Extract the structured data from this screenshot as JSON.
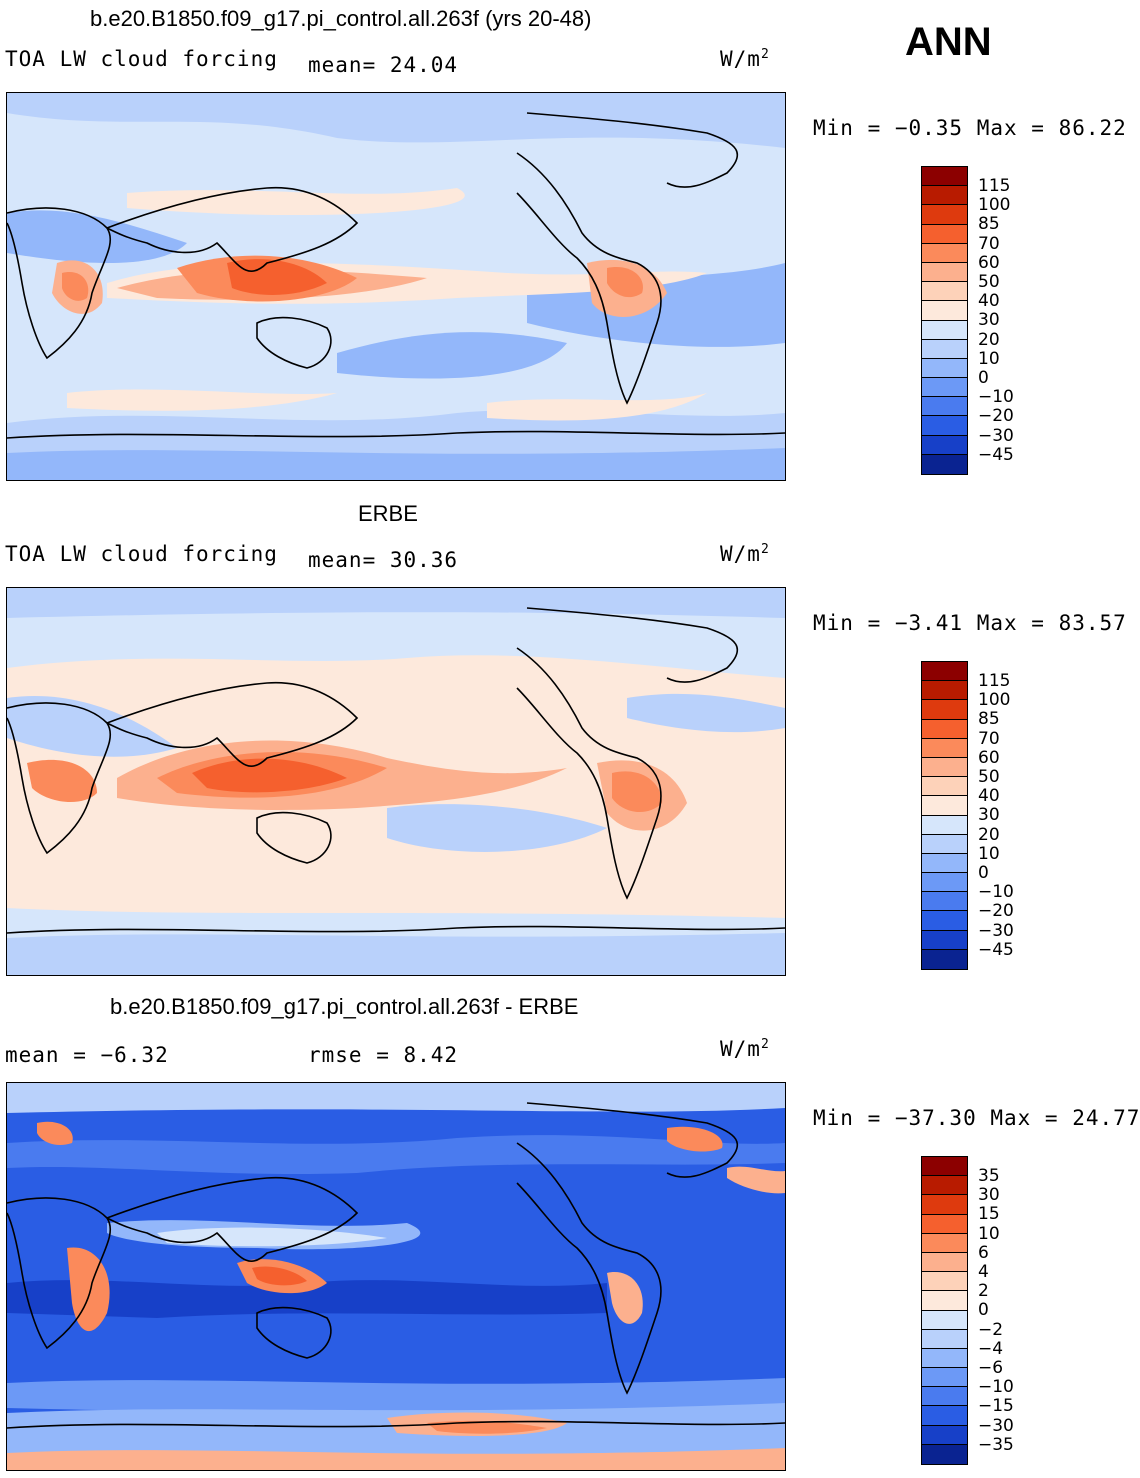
{
  "header": {
    "season": "ANN"
  },
  "panels": [
    {
      "title": "b.e20.B1850.f09_g17.pi_control.all.263f (yrs 20-48)",
      "variable": "TOA LW cloud forcing",
      "stat1": "mean=  24.04",
      "units": "W/m",
      "units_exp": "2",
      "minmax": "Min =  −0.35 Max =  86.22",
      "colorbar": {
        "labels": [
          "115",
          "100",
          "85",
          "70",
          "60",
          "50",
          "40",
          "30",
          "20",
          "10",
          "0",
          "−10",
          "−20",
          "−30",
          "−45"
        ],
        "colors": [
          "#8c0000",
          "#b81b00",
          "#de3a0e",
          "#f5602e",
          "#fb8a5b",
          "#fcb08e",
          "#fdd2b9",
          "#fde9dc",
          "#d6e6fb",
          "#b9d1fb",
          "#93b7fa",
          "#6c99f6",
          "#4a7bef",
          "#2a5de4",
          "#1740c8",
          "#0a2391"
        ]
      },
      "map_bg": "#d6e6fb"
    },
    {
      "title": "ERBE",
      "variable": "TOA LW cloud forcing",
      "stat1": "mean=  30.36",
      "units": "W/m",
      "units_exp": "2",
      "minmax": "Min =  −3.41 Max =  83.57",
      "colorbar": {
        "labels": [
          "115",
          "100",
          "85",
          "70",
          "60",
          "50",
          "40",
          "30",
          "20",
          "10",
          "0",
          "−10",
          "−20",
          "−30",
          "−45"
        ],
        "colors": [
          "#8c0000",
          "#b81b00",
          "#de3a0e",
          "#f5602e",
          "#fb8a5b",
          "#fcb08e",
          "#fdd2b9",
          "#fde9dc",
          "#d6e6fb",
          "#b9d1fb",
          "#93b7fa",
          "#6c99f6",
          "#4a7bef",
          "#2a5de4",
          "#1740c8",
          "#0a2391"
        ]
      },
      "map_bg": "#fde9dc"
    },
    {
      "title": "b.e20.B1850.f09_g17.pi_control.all.263f - ERBE",
      "variable": "",
      "stat1": "mean =  −6.32",
      "stat2": "rmse =   8.42",
      "units": "W/m",
      "units_exp": "2",
      "minmax": "Min = −37.30 Max =  24.77",
      "colorbar": {
        "labels": [
          "35",
          "30",
          "15",
          "10",
          "6",
          "4",
          "2",
          "0",
          "−2",
          "−4",
          "−6",
          "−10",
          "−15",
          "−30",
          "−35"
        ],
        "colors": [
          "#8c0000",
          "#b81b00",
          "#de3a0e",
          "#f5602e",
          "#fb8a5b",
          "#fcb08e",
          "#fdd2b9",
          "#fde9dc",
          "#d6e6fb",
          "#b9d1fb",
          "#93b7fa",
          "#6c99f6",
          "#4a7bef",
          "#2a5de4",
          "#1740c8",
          "#0a2391"
        ]
      },
      "map_bg": "#2a5de4"
    }
  ]
}
